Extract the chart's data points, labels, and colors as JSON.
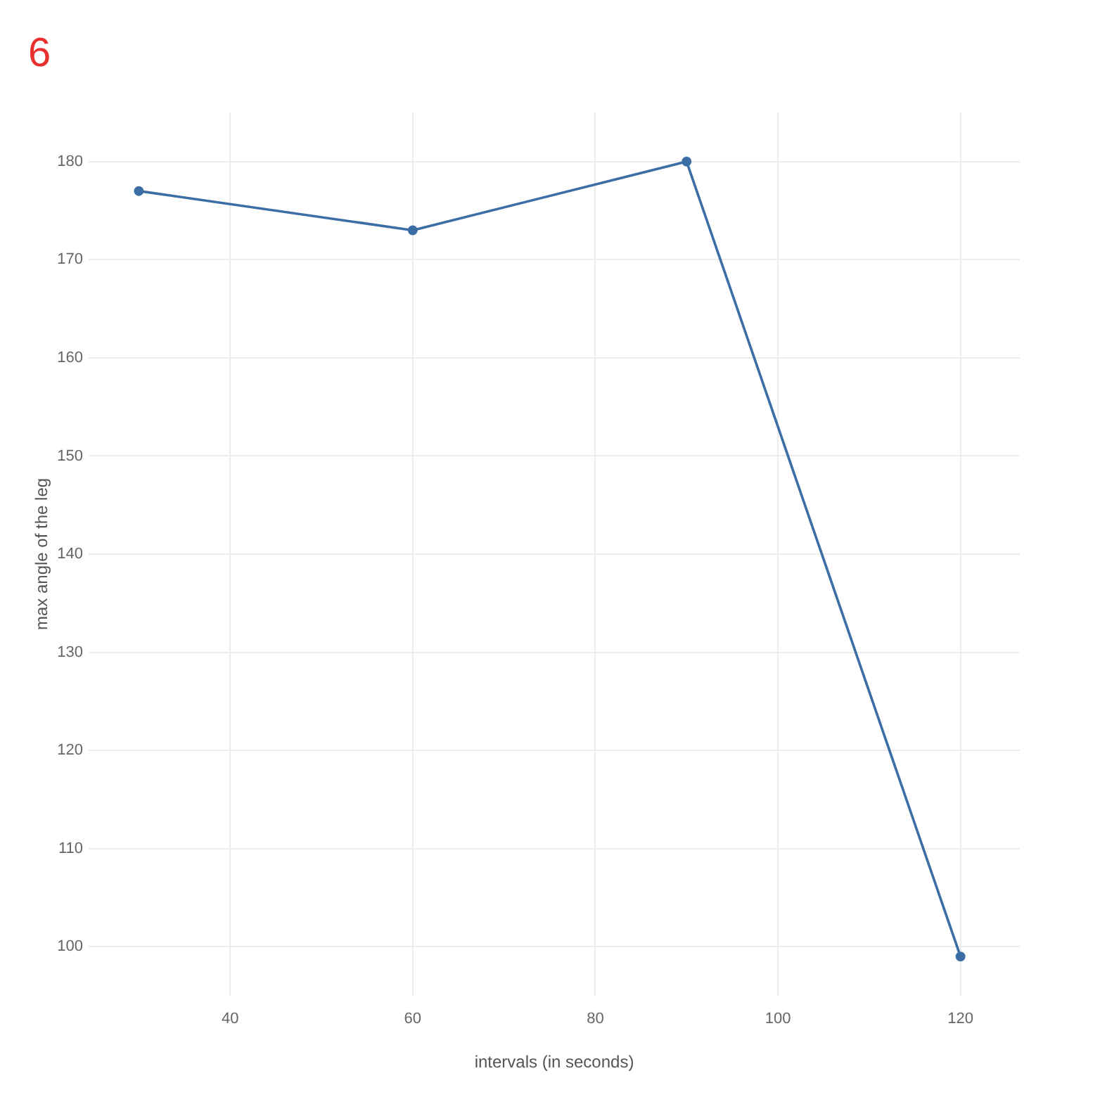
{
  "chart_data": {
    "type": "line",
    "xlabel": "intervals (in seconds)",
    "ylabel": "max angle of the leg",
    "annotations": [
      "6"
    ],
    "x": [
      30,
      60,
      90,
      120
    ],
    "series": [
      {
        "color": "#3b6ea5",
        "values": [
          177,
          173,
          180,
          99
        ]
      }
    ],
    "xlim": [
      24.5,
      126.5
    ],
    "ylim": [
      95,
      185
    ],
    "xticks": [
      40,
      60,
      80,
      100,
      120
    ],
    "yticks": [
      100,
      110,
      120,
      130,
      140,
      150,
      160,
      170,
      180
    ],
    "grid": true,
    "marker": "circle",
    "line_style": "solid"
  }
}
